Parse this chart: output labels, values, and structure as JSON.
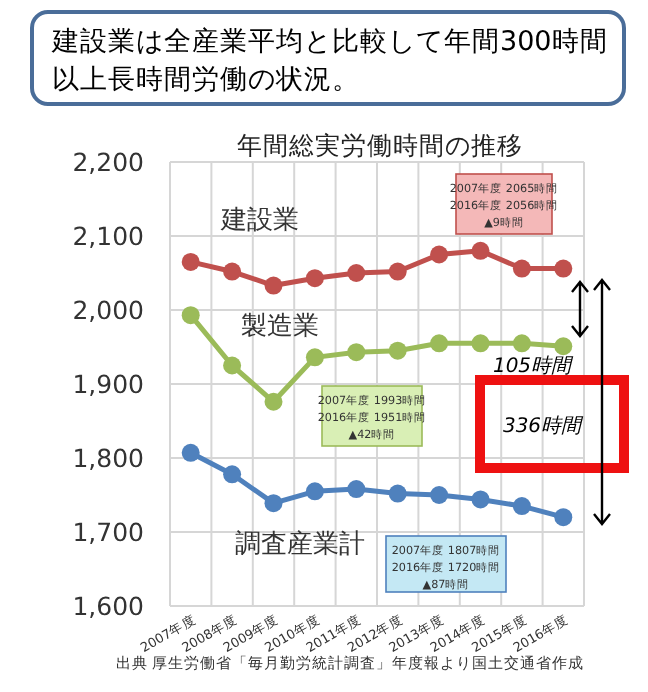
{
  "chart_data": {
    "type": "line",
    "title": "建設業は全産業平均と比較して年間300時間以上長時間労働の状況。",
    "subtitle": "年間総実労働時間の推移",
    "categories": [
      "2007年度",
      "2008年度",
      "2009年度",
      "2010年度",
      "2011年度",
      "2012年度",
      "2013年度",
      "2014年度",
      "2015年度",
      "2016年度"
    ],
    "series": [
      {
        "name": "建設業",
        "color": "#c0504d",
        "values": [
          2065,
          2052,
          2033,
          2043,
          2050,
          2052,
          2075,
          2080,
          2056,
          2056
        ]
      },
      {
        "name": "製造業",
        "color": "#9bbb59",
        "values": [
          1993,
          1925,
          1876,
          1936,
          1943,
          1945,
          1955,
          1955,
          1955,
          1951
        ]
      },
      {
        "name": "調査産業計",
        "color": "#4f81bd",
        "values": [
          1807,
          1778,
          1739,
          1755,
          1758,
          1752,
          1750,
          1744,
          1735,
          1720
        ]
      }
    ],
    "ylim": [
      1600,
      2200
    ],
    "yticks": [
      {
        "value": 1600,
        "label": "1,600"
      },
      {
        "value": 1700,
        "label": "1,700"
      },
      {
        "value": 1800,
        "label": "1,800"
      },
      {
        "value": 1900,
        "label": "1,900"
      },
      {
        "value": 2000,
        "label": "2,000"
      },
      {
        "value": 2100,
        "label": "2,100"
      },
      {
        "value": 2200,
        "label": "2,200"
      }
    ],
    "grid": true,
    "marker": "circle",
    "line_style": "solid",
    "annotations": [
      "2007年度 2065時間\n2016年度 2056時間\n▲9時間",
      "2007年度 1993時間\n2016年度 1951時間\n▲42時間",
      "2007年度 1807時間\n2016年度 1720時間\n▲87時間",
      "105時間",
      "336時間",
      "出典 厚生労働省「毎月勤労統計調査」年度報より国土交通省作成"
    ]
  }
}
